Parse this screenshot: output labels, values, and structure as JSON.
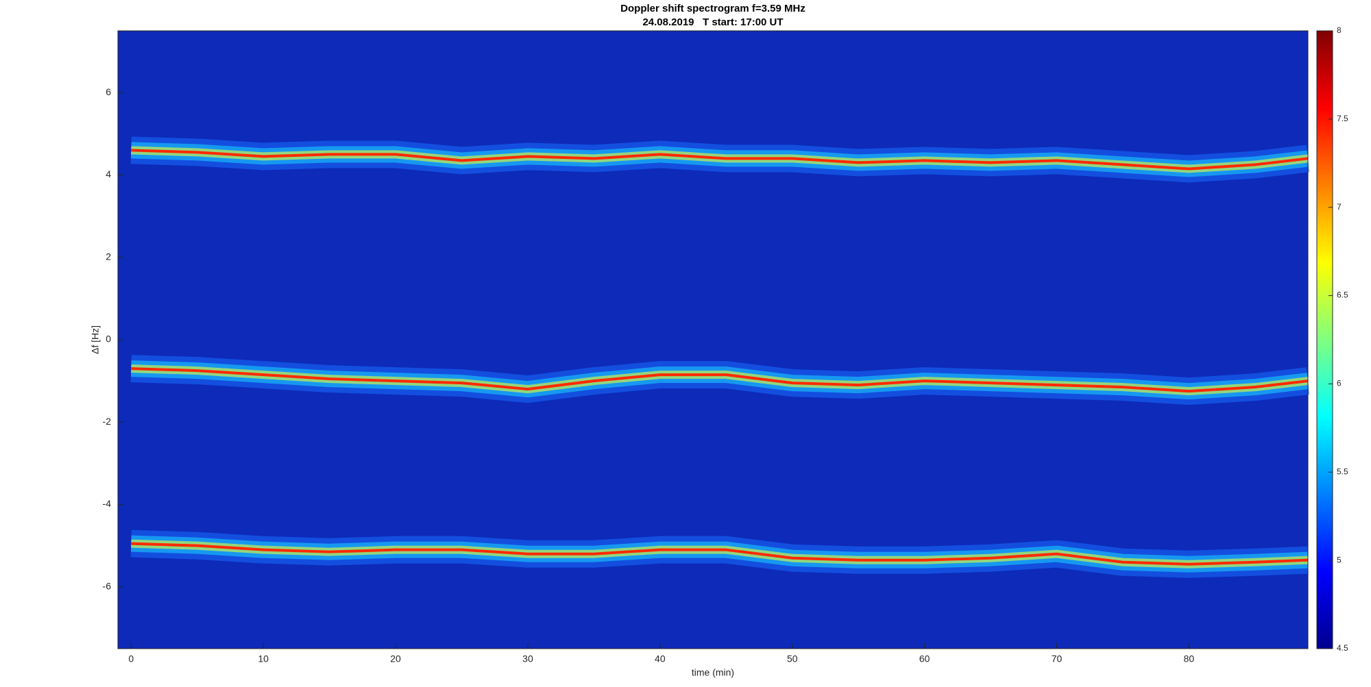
{
  "chart_data": {
    "type": "spectrogram",
    "title": "Doppler shift spectrogram f=3.59 MHz",
    "subtitle": "24.08.2019   T start: 17:00 UT",
    "xlabel": "time (min)",
    "ylabel": "Δf [Hz]",
    "background_color": "#0d2ab8",
    "x": [
      0,
      5,
      10,
      15,
      20,
      25,
      30,
      35,
      40,
      45,
      50,
      55,
      60,
      65,
      70,
      75,
      80,
      85,
      89
    ],
    "series": [
      {
        "color": "#ff2a00",
        "values": [
          4.6,
          4.55,
          4.45,
          4.5,
          4.5,
          4.35,
          4.45,
          4.4,
          4.5,
          4.4,
          4.4,
          4.3,
          4.35,
          4.3,
          4.35,
          4.25,
          4.15,
          4.25,
          4.4
        ]
      },
      {
        "color": "#ff2a00",
        "values": [
          -0.7,
          -0.75,
          -0.85,
          -0.95,
          -1.0,
          -1.05,
          -1.2,
          -1.0,
          -0.85,
          -0.85,
          -1.05,
          -1.1,
          -1.0,
          -1.05,
          -1.1,
          -1.15,
          -1.25,
          -1.15,
          -1.0
        ]
      },
      {
        "color": "#ff2a00",
        "values": [
          -4.95,
          -5.0,
          -5.1,
          -5.15,
          -5.1,
          -5.1,
          -5.2,
          -5.2,
          -5.1,
          -5.1,
          -5.3,
          -5.35,
          -5.35,
          -5.3,
          -5.2,
          -5.4,
          -5.45,
          -5.4,
          -5.35
        ]
      }
    ],
    "xlim": [
      -1,
      89
    ],
    "xticks": [
      0,
      10,
      20,
      30,
      40,
      50,
      60,
      70,
      80
    ],
    "ylim": [
      -7.5,
      7.5
    ],
    "yticks": [
      -6,
      -4,
      -2,
      0,
      2,
      4,
      6
    ],
    "clim": [
      4.5,
      8
    ],
    "cticks": [
      4.5,
      5,
      5.5,
      6,
      6.5,
      7,
      7.5,
      8
    ]
  }
}
